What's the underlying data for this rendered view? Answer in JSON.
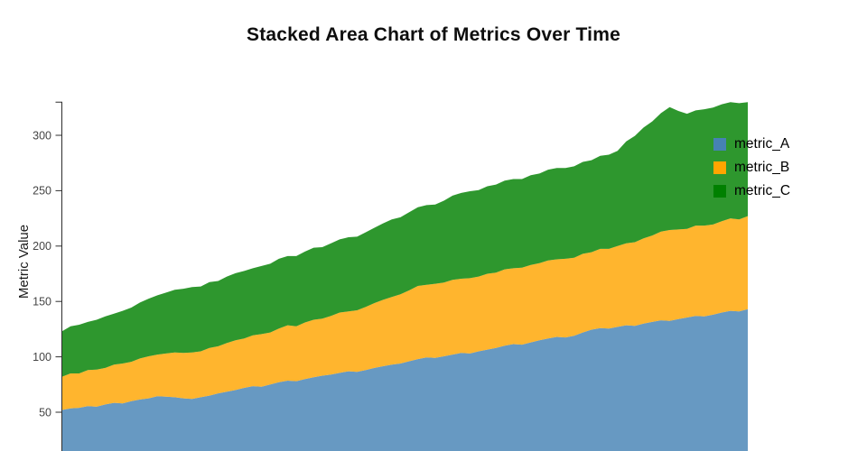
{
  "chart_data": {
    "type": "area",
    "stacked": true,
    "title": "Stacked Area Chart of Metrics Over Time",
    "ylabel": "Metric Value",
    "grid": false,
    "legend_position": "inside-top-right",
    "y_ticks": [
      50,
      100,
      150,
      200,
      250,
      300
    ],
    "y_axis_max": 330,
    "baseline": 0,
    "area_opacity": 0.82,
    "axis_color": "#2e2e2e",
    "tick_label_color": "#454545",
    "title_color": "#0e0e0e",
    "series": [
      {
        "name": "metric_A",
        "color": "#4682B4",
        "values": [
          52,
          53.5,
          54,
          55.5,
          55,
          57,
          58.5,
          58,
          60,
          61.5,
          62.5,
          64.5,
          64,
          63.5,
          62.5,
          62,
          63.5,
          65,
          67,
          68.5,
          70,
          72,
          73.5,
          73,
          75,
          77,
          78.5,
          78,
          80,
          81.5,
          83,
          84,
          85.5,
          87,
          86.5,
          88,
          90,
          91.5,
          93,
          94,
          96,
          98,
          99.5,
          99,
          100.5,
          102,
          103.5,
          103,
          105,
          106.5,
          108,
          110,
          111.5,
          111,
          113,
          115,
          116.5,
          118,
          117.5,
          119,
          122,
          124.5,
          126,
          125.5,
          127,
          128.5,
          128,
          130,
          131.5,
          133,
          132.5,
          134,
          135.5,
          137,
          136.5,
          138,
          140,
          141.5,
          141,
          143
        ]
      },
      {
        "name": "metric_B",
        "color": "#FFA500",
        "values": [
          30,
          31.5,
          31,
          32.5,
          33.5,
          33,
          34.5,
          36,
          35.5,
          37,
          38,
          37.5,
          39,
          40.5,
          41,
          42,
          41.5,
          43,
          42.5,
          44,
          45,
          44.5,
          46,
          47.5,
          47,
          48.5,
          50,
          49.5,
          51,
          52,
          51.5,
          53,
          54.5,
          54,
          55.5,
          57,
          58.5,
          60,
          61,
          62.5,
          64,
          66,
          65.5,
          67,
          66.5,
          67.5,
          67,
          68,
          67.5,
          68.5,
          68,
          69,
          68.5,
          69.5,
          70,
          69.5,
          70.5,
          70,
          71,
          70.5,
          71,
          70,
          71.5,
          72,
          73,
          74,
          75.5,
          77,
          78,
          80,
          82,
          81,
          80,
          81.5,
          82,
          81.5,
          82.5,
          83.5,
          83,
          84
        ]
      },
      {
        "name": "metric_C",
        "color": "#008000",
        "values": [
          41,
          42.5,
          44,
          43.5,
          45,
          46.5,
          46,
          47.5,
          49,
          50.5,
          52,
          53.5,
          55,
          56.5,
          58,
          59,
          58.5,
          59.5,
          59,
          60,
          60.5,
          61,
          60.5,
          61.5,
          62,
          63,
          62.5,
          63.5,
          64,
          65,
          64.5,
          65.5,
          66,
          67,
          66.5,
          67.5,
          68,
          69,
          70,
          69.5,
          70.5,
          71,
          72,
          71.5,
          74,
          76,
          77.5,
          78.5,
          78,
          79,
          79.5,
          80,
          80.5,
          80,
          81,
          81,
          82,
          82.5,
          82,
          82.5,
          83,
          83,
          84,
          85,
          86,
          92,
          96,
          100,
          103,
          107,
          111,
          107,
          104,
          104,
          105,
          105.5,
          105.5,
          105,
          105,
          103
        ]
      }
    ]
  }
}
